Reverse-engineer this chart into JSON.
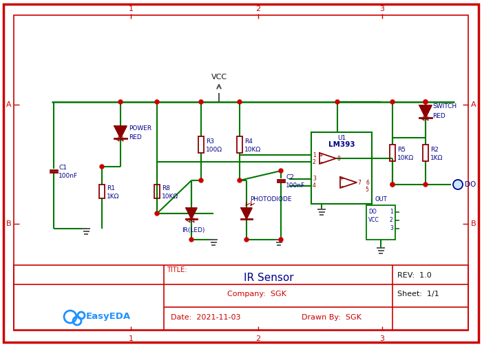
{
  "bg_color": "#ffffff",
  "border_color": "#cc0000",
  "wire_color": "#007700",
  "comp_color": "#8b0000",
  "label_color": "#00008b",
  "node_color": "#cc0000",
  "ground_color": "#555555",
  "title_text": "IR Sensor",
  "rev_text": "REV:  1.0",
  "company_text": "Company:  SGK",
  "sheet_text": "Sheet:  1/1",
  "date_text": "Date:  2021-11-03",
  "drawn_text": "Drawn By:  SGK",
  "title_label": "TITLE:",
  "vcc_label": "VCC"
}
